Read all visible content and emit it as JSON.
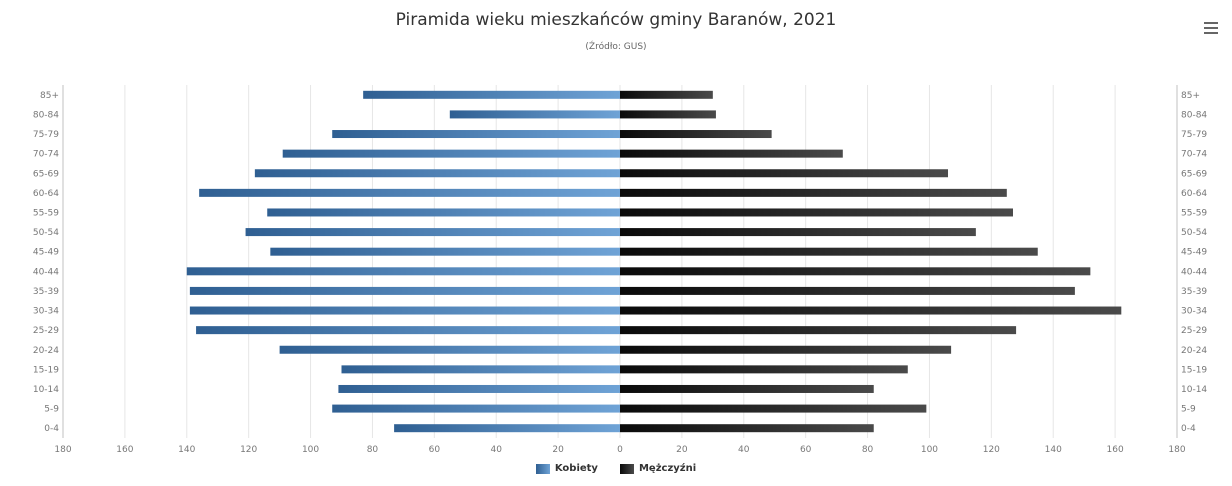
{
  "title": "Piramida wieku mieszkańców gminy Baranów, 2021",
  "subtitle": "(Źródło: GUS)",
  "menu": {
    "icon": "hamburger-menu-icon"
  },
  "colors": {
    "female": "#3f75ad",
    "female_light": "#6a9fd2",
    "male": "#1c1c1c",
    "male_light": "#444444",
    "grid": "#e6e6e6",
    "axis": "#c0c0c0",
    "label": "#777777"
  },
  "chart_data": {
    "type": "bar",
    "orientation": "horizontal-pyramid",
    "categories": [
      "85+",
      "80-84",
      "75-79",
      "70-74",
      "65-69",
      "60-64",
      "55-59",
      "50-54",
      "45-49",
      "40-44",
      "35-39",
      "30-34",
      "25-29",
      "20-24",
      "15-19",
      "10-14",
      "5-9",
      "0-4"
    ],
    "series": [
      {
        "name": "Kobiety",
        "values": [
          83,
          55,
          93,
          109,
          118,
          136,
          114,
          121,
          113,
          140,
          139,
          139,
          137,
          110,
          90,
          91,
          93,
          73
        ]
      },
      {
        "name": "Mężczyźni",
        "values": [
          30,
          31,
          49,
          72,
          106,
          125,
          127,
          115,
          135,
          152,
          147,
          162,
          128,
          107,
          93,
          82,
          99,
          82
        ]
      }
    ],
    "x_tick_labels": [
      "180",
      "160",
      "140",
      "120",
      "100",
      "80",
      "60",
      "40",
      "20",
      "0",
      "20",
      "40",
      "60",
      "80",
      "100",
      "120",
      "140",
      "160",
      "180"
    ],
    "xlim": [
      -180,
      180
    ],
    "grid": true,
    "legend_position": "bottom-center"
  }
}
